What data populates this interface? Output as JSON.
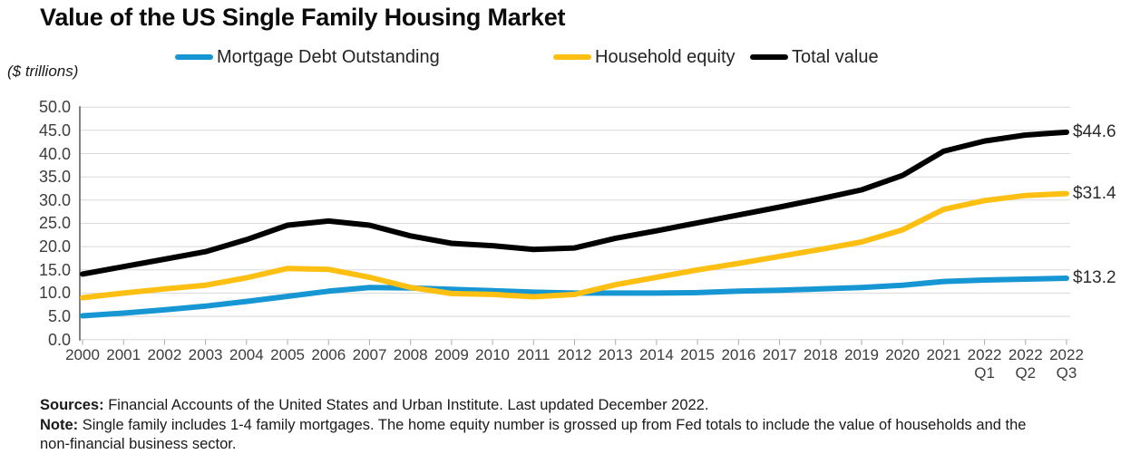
{
  "title": "Value of the US Single Family Housing Market",
  "unit_label": "($ trillions)",
  "legend": [
    {
      "label": "Mortgage Debt Outstanding",
      "color": "#1696d2"
    },
    {
      "label": "Household equity",
      "color": "#fdbf11"
    },
    {
      "label": "Total value",
      "color": "#000000"
    }
  ],
  "chart_data": {
    "type": "line",
    "title": "Value of the US Single Family Housing Market",
    "ylabel": "($ trillions)",
    "xlabel": "",
    "ylim": [
      0,
      50
    ],
    "ytick_step": 5,
    "ytick_labels": [
      "0.0",
      "5.0",
      "10.0",
      "15.0",
      "20.0",
      "25.0",
      "30.0",
      "35.0",
      "40.0",
      "45.0",
      "50.0"
    ],
    "grid": true,
    "legend_position": "top",
    "x": [
      "2000",
      "2001",
      "2002",
      "2003",
      "2004",
      "2005",
      "2006",
      "2007",
      "2008",
      "2009",
      "2010",
      "2011",
      "2012",
      "2013",
      "2014",
      "2015",
      "2016",
      "2017",
      "2018",
      "2019",
      "2020",
      "2021",
      "2022 Q1",
      "2022 Q2",
      "2022 Q3"
    ],
    "series": [
      {
        "name": "Mortgage Debt Outstanding",
        "color": "#1696d2",
        "values": [
          5.1,
          5.7,
          6.4,
          7.2,
          8.2,
          9.3,
          10.4,
          11.2,
          11.1,
          10.8,
          10.5,
          10.2,
          10.0,
          10.0,
          10.0,
          10.1,
          10.4,
          10.6,
          10.9,
          11.2,
          11.7,
          12.5,
          12.8,
          13.0,
          13.2
        ]
      },
      {
        "name": "Household equity",
        "color": "#fdbf11",
        "values": [
          9.0,
          10.0,
          10.9,
          11.7,
          13.3,
          15.3,
          15.1,
          13.4,
          11.2,
          9.9,
          9.7,
          9.2,
          9.7,
          11.8,
          13.4,
          15.0,
          16.4,
          17.9,
          19.4,
          21.0,
          23.6,
          28.0,
          29.9,
          31.0,
          31.4
        ]
      },
      {
        "name": "Total value",
        "color": "#000000",
        "values": [
          14.1,
          15.7,
          17.3,
          18.9,
          21.5,
          24.6,
          25.5,
          24.6,
          22.3,
          20.7,
          20.2,
          19.4,
          19.7,
          21.8,
          23.4,
          25.1,
          26.8,
          28.5,
          30.3,
          32.2,
          35.3,
          40.5,
          42.7,
          44.0,
          44.6
        ]
      }
    ],
    "end_labels": [
      {
        "series": "Total value",
        "text": "$44.6",
        "value": 44.6
      },
      {
        "series": "Household equity",
        "text": "$31.4",
        "value": 31.4
      },
      {
        "series": "Mortgage Debt Outstanding",
        "text": "$13.2",
        "value": 13.2
      }
    ]
  },
  "footer": {
    "sources_label": "Sources:",
    "sources_text": " Financial Accounts of the United States and Urban Institute. Last updated December 2022.",
    "note_label": "Note:",
    "note_text": " Single family includes 1-4 family mortgages. The home equity number is grossed up from Fed totals to include the value of households and the non-financial business sector."
  }
}
